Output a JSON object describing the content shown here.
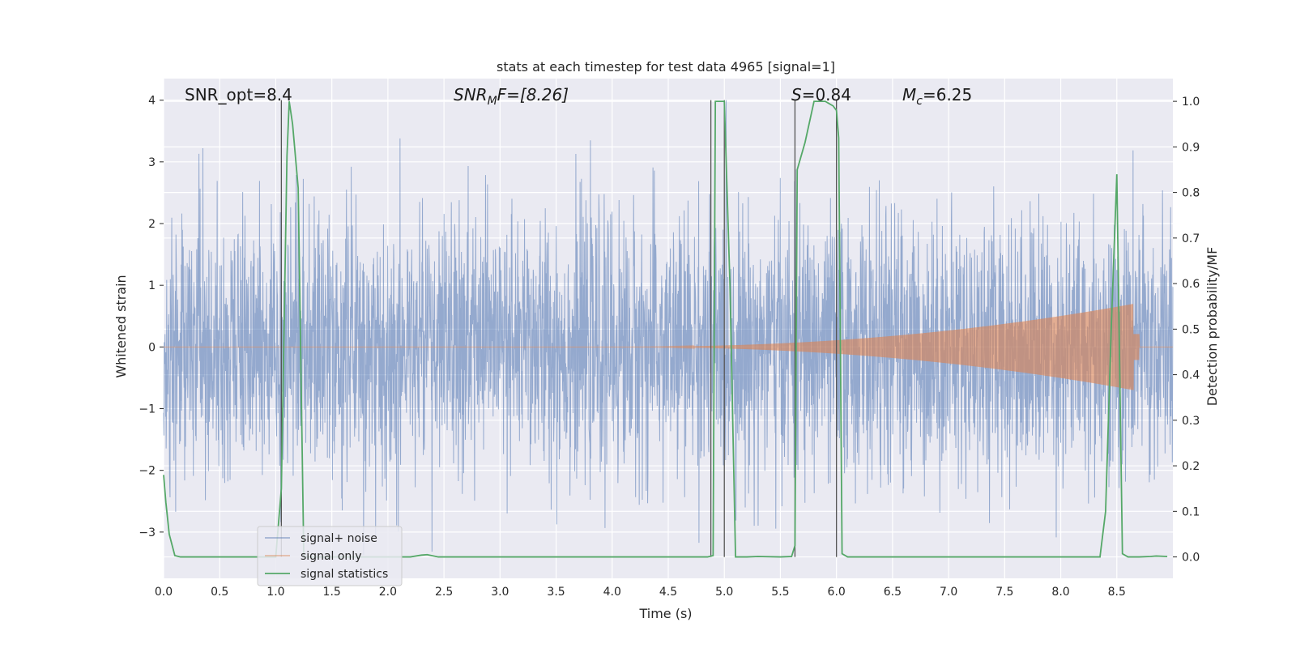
{
  "chart_data": {
    "type": "line",
    "title": "stats at each timestep for test data 4965 [signal=1]",
    "xlabel": "Time (s)",
    "ylabel_left": "Whitened strain",
    "ylabel_right": "Detection probability/MF",
    "xlim": [
      0.0,
      9.0
    ],
    "ylim_left": [
      -3.75,
      4.35
    ],
    "ylim_right": [
      -0.047,
      1.05
    ],
    "x_ticks": [
      "0.0",
      "0.5",
      "1.0",
      "1.5",
      "2.0",
      "2.5",
      "3.0",
      "3.5",
      "4.0",
      "4.5",
      "5.0",
      "5.5",
      "6.0",
      "6.5",
      "7.0",
      "7.5",
      "8.0",
      "8.5"
    ],
    "y_left_ticks": [
      "4",
      "3",
      "2",
      "1",
      "0",
      "−1",
      "−2",
      "−3"
    ],
    "y_right_ticks": [
      "1.0",
      "0.9",
      "0.8",
      "0.7",
      "0.6",
      "0.5",
      "0.4",
      "0.3",
      "0.2",
      "0.1",
      "0.0"
    ],
    "grid": true,
    "annotations": {
      "snr_opt": "SNR_opt=8.4",
      "snr_mf_italic": "SNR",
      "snr_mf_sub": "M",
      "snr_mf_rest": "F=[8.26]",
      "s_italic": "S",
      "s_rest": "=0.84",
      "mc_italic": "M",
      "mc_sub": "c",
      "mc_rest": "=6.25"
    },
    "vertical_lines_x": [
      1.05,
      4.88,
      5.0,
      5.63,
      6.0
    ],
    "legend": {
      "position": "lower-left",
      "entries": [
        "signal+ noise",
        "signal only",
        "signal statistics"
      ]
    },
    "series": [
      {
        "name": "signal+ noise",
        "color": "#4c72b0",
        "axis": "left",
        "description_fill": true,
        "typical_envelope": [
          -2.5,
          2.5
        ],
        "extremes": [
          -3.45,
          4.0
        ]
      },
      {
        "name": "signal only",
        "color": "#dd8452",
        "axis": "left",
        "chirp_start_x": 4.0,
        "chirp_peak_x": 8.65,
        "chirp_peak_amp": 0.7,
        "end_x": 8.7
      },
      {
        "name": "signal statistics",
        "color": "#55a868",
        "axis": "right",
        "x": [
          0.0,
          0.02,
          0.05,
          0.1,
          0.15,
          1.0,
          1.05,
          1.1,
          1.12,
          1.15,
          1.2,
          1.25,
          1.3,
          2.2,
          2.3,
          2.35,
          2.45,
          4.85,
          4.9,
          4.92,
          5.0,
          5.05,
          5.1,
          5.2,
          5.3,
          5.5,
          5.6,
          5.63,
          5.65,
          5.72,
          5.8,
          5.9,
          5.97,
          6.0,
          6.02,
          6.05,
          6.1,
          8.35,
          8.4,
          8.45,
          8.5,
          8.55,
          8.6,
          8.7,
          8.8,
          8.85,
          8.95
        ],
        "y": [
          0.18,
          0.12,
          0.05,
          0.003,
          0.0,
          0.0,
          0.15,
          0.88,
          1.0,
          0.95,
          0.81,
          0.0,
          0.0,
          0.0,
          0.004,
          0.005,
          0.0,
          0.0,
          0.003,
          1.0,
          1.0,
          0.6,
          0.0,
          0.0,
          0.001,
          0.0,
          0.001,
          0.025,
          0.85,
          0.91,
          1.0,
          1.0,
          0.99,
          0.98,
          0.92,
          0.007,
          0.0,
          0.0,
          0.1,
          0.5,
          0.84,
          0.007,
          0.0,
          0.0,
          0.001,
          0.002,
          0.001
        ]
      }
    ]
  }
}
